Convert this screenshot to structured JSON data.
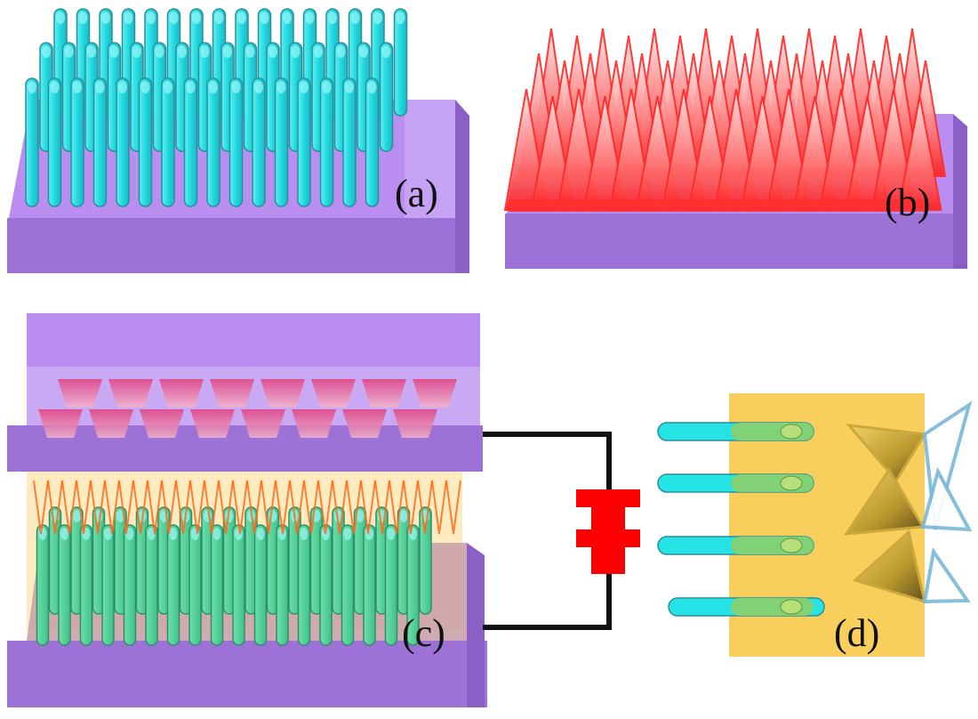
{
  "panels": [
    {
      "id": "a",
      "label": "(a)"
    },
    {
      "id": "b",
      "label": "(b)"
    },
    {
      "id": "c",
      "label": "(c)"
    },
    {
      "id": "d",
      "label": "(d)"
    }
  ],
  "colors": {
    "substrate_top": "#b98ef0",
    "substrate_front": "#9c72d6",
    "substrate_side": "#8a5fc6",
    "nanorod": "#26e4e6",
    "nanorod_outline": "#2a8f9c",
    "nanocone": "#ff2a2a",
    "nanocone_light": "#ffd0d0",
    "interface_glow": "#ffd9a0",
    "wire": "#111111",
    "load": "#ff0000",
    "contact_region": "#f7c640",
    "triangle_gold": "#d8b238",
    "triangle_outline": "#7ab8d8"
  }
}
